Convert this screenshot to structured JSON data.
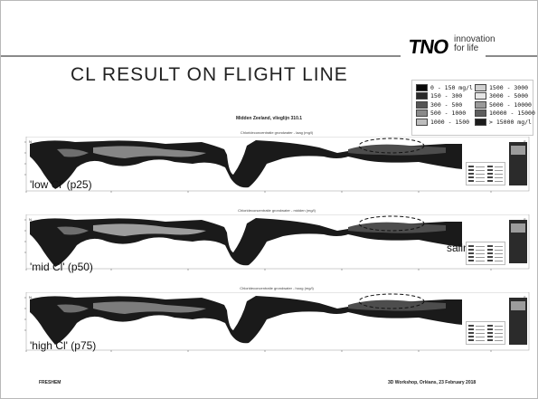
{
  "logo": {
    "word": "TNO",
    "tagline_1": "innovation",
    "tagline_2": "for life"
  },
  "title": "CL RESULT ON FLIGHT LINE",
  "legend": {
    "left": [
      {
        "label": "0 - 150 mg/l",
        "color": "#0a0a0a"
      },
      {
        "label": "150 - 300",
        "color": "#2a2a2a"
      },
      {
        "label": "300 - 500",
        "color": "#555555"
      },
      {
        "label": "500 - 1000",
        "color": "#8a8a8a"
      },
      {
        "label": "1000 - 1500",
        "color": "#bdbdbd"
      }
    ],
    "right": [
      {
        "label": "1500 - 3000",
        "color": "#d0d0d0"
      },
      {
        "label": "3000 - 5000",
        "color": "#e6e6e6"
      },
      {
        "label": "5000 - 10000",
        "color": "#9a9a9a"
      },
      {
        "label": "10000 - 15000",
        "color": "#5e5e5e"
      },
      {
        "label": "> 15000 mg/l",
        "color": "#1c1c1c"
      }
    ]
  },
  "figure": {
    "title": "Midden Zeeland, vlieglijn 310.1",
    "panels": [
      {
        "subtitle": "Chlorideconcentratie grondwater - laag (mg/l)",
        "label": "'low Cl' (p25)"
      },
      {
        "subtitle": "Chlorideconcentratie grondwater - midden (mg/l)",
        "label": "'mid Cl' (p50)"
      },
      {
        "subtitle": "Chlorideconcentratie grondwater - hoog (mg/l)",
        "label": "'high Cl' (p75)"
      }
    ],
    "saline_label": "saline"
  },
  "footer": {
    "left": "FRESHEM",
    "right": "3D Workshop, Orléans, 23 February 2018"
  }
}
